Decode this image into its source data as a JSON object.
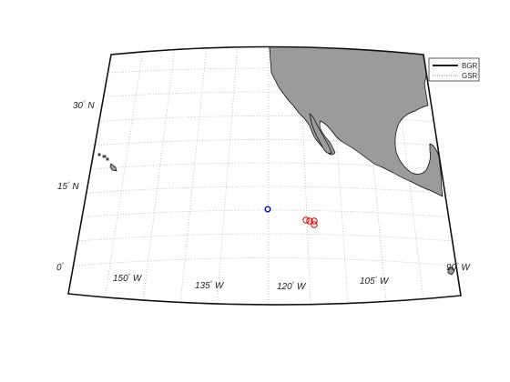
{
  "map": {
    "projection": "conic",
    "graticule": {
      "style": "dotted",
      "visible": true
    },
    "land_color": "#9b9b9b",
    "land_edge_color": "#000000",
    "frame_color": "#111111"
  },
  "lat_labels": [
    {
      "deg": "30",
      "hemi": "N"
    },
    {
      "deg": "15",
      "hemi": "N"
    },
    {
      "deg": "0",
      "hemi": ""
    }
  ],
  "lon_labels": [
    {
      "deg": "150",
      "hemi": "W"
    },
    {
      "deg": "135",
      "hemi": "W"
    },
    {
      "deg": "120",
      "hemi": "W"
    },
    {
      "deg": "105",
      "hemi": "W"
    },
    {
      "deg": "90",
      "hemi": "W"
    }
  ],
  "legend": {
    "position": "top-right",
    "items": [
      {
        "label": "BGR",
        "line_style": "solid",
        "color": "#000000"
      },
      {
        "label": "GSR",
        "line_style": "dotted",
        "color": "#777777"
      }
    ]
  },
  "markers": [
    {
      "group": "blue",
      "color": "#0000cc",
      "count": 1
    },
    {
      "group": "red",
      "color": "#dd0000",
      "count": 4
    }
  ]
}
